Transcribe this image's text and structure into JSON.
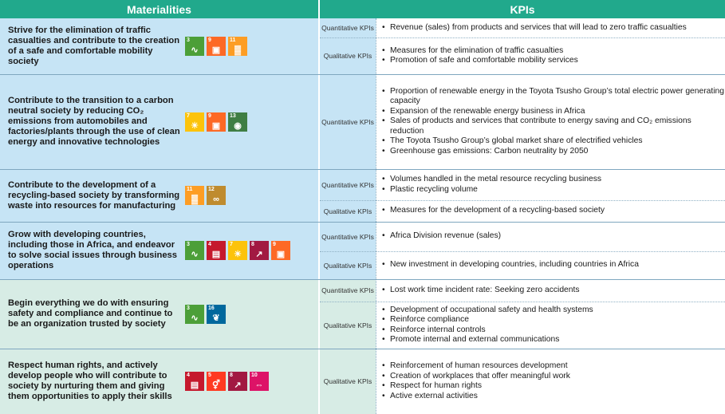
{
  "header": {
    "materialities": "Materialities",
    "kpis": "KPIs"
  },
  "colors": {
    "blue_row": "#c6e4f5",
    "green_row": "#d7ece5",
    "header_bg": "#21a98c"
  },
  "rows": [
    {
      "materiality": "Strive for the elimination of traffic casualties and contribute to the creation of a safe and comfortable mobility society",
      "sdgs": [
        {
          "n": "3",
          "icon": "heartbeat-icon"
        },
        {
          "n": "9",
          "icon": "industry-cubes-icon"
        },
        {
          "n": "11",
          "icon": "city-buildings-icon"
        }
      ],
      "kpi_groups": [
        {
          "label": "Quantitative KPIs",
          "items": [
            "Revenue (sales) from products and services that will lead to zero traffic casualties"
          ]
        },
        {
          "label": "Qualitative KPIs",
          "items": [
            "Measures for the elimination of traffic casualties",
            "Promotion of safe and comfortable mobility services"
          ]
        }
      ]
    },
    {
      "materiality": "Contribute to the transition to a carbon neutral society by reducing CO₂ emissions from automobiles and factories/plants through the use of clean energy and innovative technologies",
      "sdgs": [
        {
          "n": "7",
          "icon": "sun-energy-icon"
        },
        {
          "n": "9",
          "icon": "industry-cubes-icon"
        },
        {
          "n": "13",
          "icon": "earth-eye-icon"
        }
      ],
      "kpi_groups": [
        {
          "label": "Quantitative KPIs",
          "items": [
            "Proportion of renewable energy in the Toyota Tsusho Group’s total electric power generating capacity",
            "Expansion of the renewable energy business in Africa",
            "Sales of products and services that contribute to energy saving and CO₂ emissions reduction",
            "The Toyota Tsusho Group’s global market share of electrified vehicles",
            "Greenhouse gas emissions: Carbon neutrality by 2050"
          ]
        }
      ]
    },
    {
      "materiality": "Contribute to the development of a recycling-based society by transforming waste into resources for manufacturing",
      "sdgs": [
        {
          "n": "11",
          "icon": "city-buildings-icon"
        },
        {
          "n": "12",
          "icon": "infinity-loop-icon"
        }
      ],
      "kpi_groups": [
        {
          "label": "Quantitative KPIs",
          "items": [
            "Volumes handled in the metal resource recycling business",
            "Plastic recycling volume"
          ]
        },
        {
          "label": "Qualitative KPIs",
          "items": [
            "Measures for the development of a recycling-based society"
          ]
        }
      ]
    },
    {
      "materiality": "Grow with developing countries, including those in Africa, and endeavor to solve social issues through business operations",
      "sdgs": [
        {
          "n": "3",
          "icon": "heartbeat-icon"
        },
        {
          "n": "4",
          "icon": "book-icon"
        },
        {
          "n": "7",
          "icon": "sun-energy-icon"
        },
        {
          "n": "8",
          "icon": "growth-chart-icon"
        },
        {
          "n": "9",
          "icon": "industry-cubes-icon"
        }
      ],
      "kpi_groups": [
        {
          "label": "Quantitative KPIs",
          "items": [
            "Africa Division revenue (sales)"
          ]
        },
        {
          "label": "Qualitative KPIs",
          "items": [
            "New investment in developing countries, including countries in Africa"
          ]
        }
      ]
    },
    {
      "materiality": "Begin everything we do with ensuring safety and compliance and continue to be an organization trusted by society",
      "sdgs": [
        {
          "n": "3",
          "icon": "heartbeat-icon"
        },
        {
          "n": "16",
          "icon": "dove-icon"
        }
      ],
      "kpi_groups": [
        {
          "label": "Quantitative KPIs",
          "items": [
            "Lost work time incident rate: Seeking zero accidents"
          ]
        },
        {
          "label": "Qualitative KPIs",
          "items": [
            "Development of occupational safety and health systems",
            "Reinforce compliance",
            "Reinforce internal controls",
            "Promote internal and external communications"
          ]
        }
      ]
    },
    {
      "materiality": "Respect human rights, and actively develop people who will contribute to society by nurturing them and giving them opportunities to apply their skills",
      "sdgs": [
        {
          "n": "4",
          "icon": "book-icon"
        },
        {
          "n": "5",
          "icon": "gender-icon"
        },
        {
          "n": "8",
          "icon": "growth-chart-icon"
        },
        {
          "n": "10",
          "icon": "equality-icon"
        }
      ],
      "kpi_groups": [
        {
          "label": "Qualitative KPIs",
          "items": [
            "Reinforcement of human resources development",
            "Creation of workplaces that offer meaningful work",
            "Respect for human rights",
            "Active external activities"
          ]
        }
      ]
    }
  ]
}
